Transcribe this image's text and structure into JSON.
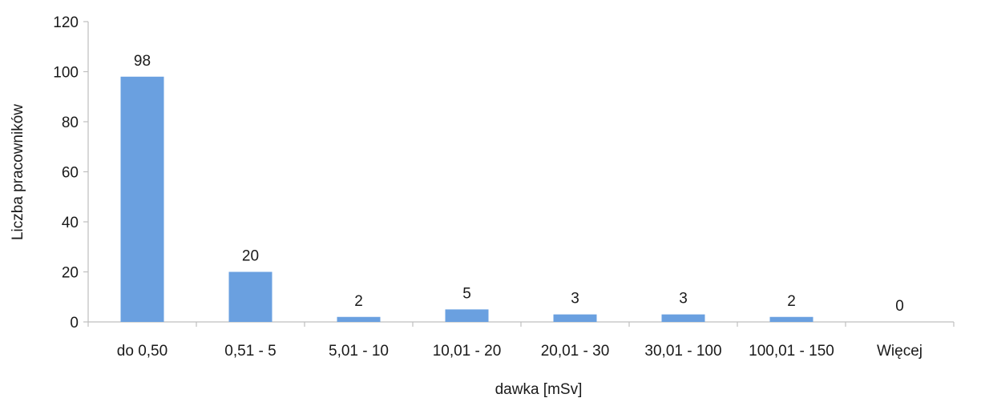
{
  "chart_data": {
    "type": "bar",
    "categories": [
      "do 0,50",
      "0,51 - 5",
      "5,01 - 10",
      "10,01 - 20",
      "20,01 - 30",
      "30,01 - 100",
      "100,01 - 150",
      "Więcej"
    ],
    "values": [
      98,
      20,
      2,
      5,
      3,
      3,
      2,
      0
    ],
    "data_labels": [
      "98",
      "20",
      "2",
      "5",
      "3",
      "3",
      "2",
      "0"
    ],
    "title": "",
    "xlabel": "dawka [mSv]",
    "ylabel": "Liczba pracowników",
    "ylim": [
      0,
      120
    ],
    "yticks": [
      "0",
      "20",
      "40",
      "60",
      "80",
      "100",
      "120"
    ],
    "grid": false,
    "legend": "none",
    "bar_color": "#6aa0e0"
  }
}
